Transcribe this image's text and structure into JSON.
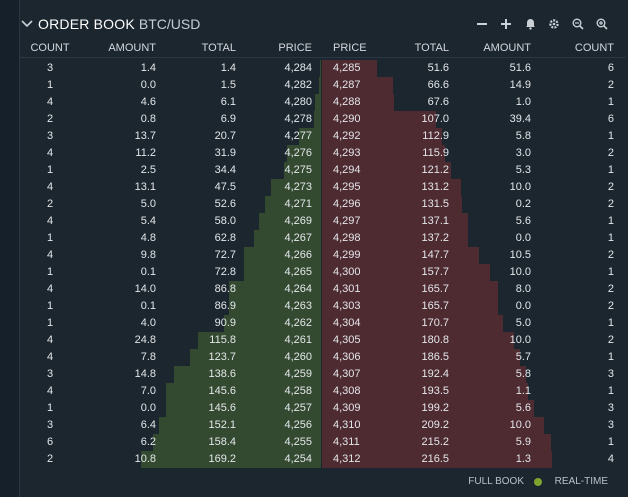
{
  "header": {
    "title": "ORDER BOOK",
    "pair": "BTC/USD",
    "tools": [
      "minus-icon",
      "plus-icon",
      "bell-icon",
      "gear-icon",
      "zoom-out-icon",
      "zoom-in-icon"
    ]
  },
  "columns": {
    "bid_count": "COUNT",
    "bid_amount": "AMOUNT",
    "bid_total": "TOTAL",
    "bid_price": "PRICE",
    "ask_price": "PRICE",
    "ask_total": "TOTAL",
    "ask_amount": "AMOUNT",
    "ask_count": "COUNT"
  },
  "colors": {
    "bid_depth": "#344a30",
    "ask_depth": "#4e2a31",
    "realtime_dot": "#7fa52e"
  },
  "depth_max": 216.5,
  "rows": [
    {
      "bc": "3",
      "ba": "1.4",
      "bt": "1.4",
      "bp": "4,284",
      "ap": "4,285",
      "at": "51.6",
      "aa": "51.6",
      "ac": "6"
    },
    {
      "bc": "1",
      "ba": "0.0",
      "bt": "1.5",
      "bp": "4,282",
      "ap": "4,287",
      "at": "66.6",
      "aa": "14.9",
      "ac": "2"
    },
    {
      "bc": "4",
      "ba": "4.6",
      "bt": "6.1",
      "bp": "4,280",
      "ap": "4,288",
      "at": "67.6",
      "aa": "1.0",
      "ac": "1"
    },
    {
      "bc": "2",
      "ba": "0.8",
      "bt": "6.9",
      "bp": "4,278",
      "ap": "4,290",
      "at": "107.0",
      "aa": "39.4",
      "ac": "6"
    },
    {
      "bc": "3",
      "ba": "13.7",
      "bt": "20.7",
      "bp": "4,277",
      "ap": "4,292",
      "at": "112.9",
      "aa": "5.8",
      "ac": "1"
    },
    {
      "bc": "4",
      "ba": "11.2",
      "bt": "31.9",
      "bp": "4,276",
      "ap": "4,293",
      "at": "115.9",
      "aa": "3.0",
      "ac": "2"
    },
    {
      "bc": "1",
      "ba": "2.5",
      "bt": "34.4",
      "bp": "4,275",
      "ap": "4,294",
      "at": "121.2",
      "aa": "5.3",
      "ac": "1"
    },
    {
      "bc": "4",
      "ba": "13.1",
      "bt": "47.5",
      "bp": "4,273",
      "ap": "4,295",
      "at": "131.2",
      "aa": "10.0",
      "ac": "2"
    },
    {
      "bc": "2",
      "ba": "5.0",
      "bt": "52.6",
      "bp": "4,271",
      "ap": "4,296",
      "at": "131.5",
      "aa": "0.2",
      "ac": "2"
    },
    {
      "bc": "4",
      "ba": "5.4",
      "bt": "58.0",
      "bp": "4,269",
      "ap": "4,297",
      "at": "137.1",
      "aa": "5.6",
      "ac": "1"
    },
    {
      "bc": "1",
      "ba": "4.8",
      "bt": "62.8",
      "bp": "4,267",
      "ap": "4,298",
      "at": "137.2",
      "aa": "0.0",
      "ac": "1"
    },
    {
      "bc": "4",
      "ba": "9.8",
      "bt": "72.7",
      "bp": "4,266",
      "ap": "4,299",
      "at": "147.7",
      "aa": "10.5",
      "ac": "2"
    },
    {
      "bc": "1",
      "ba": "0.1",
      "bt": "72.8",
      "bp": "4,265",
      "ap": "4,300",
      "at": "157.7",
      "aa": "10.0",
      "ac": "1"
    },
    {
      "bc": "4",
      "ba": "14.0",
      "bt": "86.8",
      "bp": "4,264",
      "ap": "4,301",
      "at": "165.7",
      "aa": "8.0",
      "ac": "2"
    },
    {
      "bc": "1",
      "ba": "0.1",
      "bt": "86.9",
      "bp": "4,263",
      "ap": "4,303",
      "at": "165.7",
      "aa": "0.0",
      "ac": "2"
    },
    {
      "bc": "1",
      "ba": "4.0",
      "bt": "90.9",
      "bp": "4,262",
      "ap": "4,304",
      "at": "170.7",
      "aa": "5.0",
      "ac": "1"
    },
    {
      "bc": "4",
      "ba": "24.8",
      "bt": "115.8",
      "bp": "4,261",
      "ap": "4,305",
      "at": "180.8",
      "aa": "10.0",
      "ac": "2"
    },
    {
      "bc": "4",
      "ba": "7.8",
      "bt": "123.7",
      "bp": "4,260",
      "ap": "4,306",
      "at": "186.5",
      "aa": "5.7",
      "ac": "1"
    },
    {
      "bc": "3",
      "ba": "14.8",
      "bt": "138.6",
      "bp": "4,259",
      "ap": "4,307",
      "at": "192.4",
      "aa": "5.8",
      "ac": "3"
    },
    {
      "bc": "4",
      "ba": "7.0",
      "bt": "145.6",
      "bp": "4,258",
      "ap": "4,308",
      "at": "193.5",
      "aa": "1.1",
      "ac": "1"
    },
    {
      "bc": "1",
      "ba": "0.0",
      "bt": "145.6",
      "bp": "4,257",
      "ap": "4,309",
      "at": "199.2",
      "aa": "5.6",
      "ac": "3"
    },
    {
      "bc": "3",
      "ba": "6.4",
      "bt": "152.1",
      "bp": "4,256",
      "ap": "4,310",
      "at": "209.2",
      "aa": "10.0",
      "ac": "3"
    },
    {
      "bc": "6",
      "ba": "6.2",
      "bt": "158.4",
      "bp": "4,255",
      "ap": "4,311",
      "at": "215.2",
      "aa": "5.9",
      "ac": "1"
    },
    {
      "bc": "2",
      "ba": "10.8",
      "bt": "169.2",
      "bp": "4,254",
      "ap": "4,312",
      "at": "216.5",
      "aa": "1.3",
      "ac": "4"
    }
  ],
  "footer": {
    "full_book": "FULL BOOK",
    "realtime": "REAL-TIME"
  }
}
